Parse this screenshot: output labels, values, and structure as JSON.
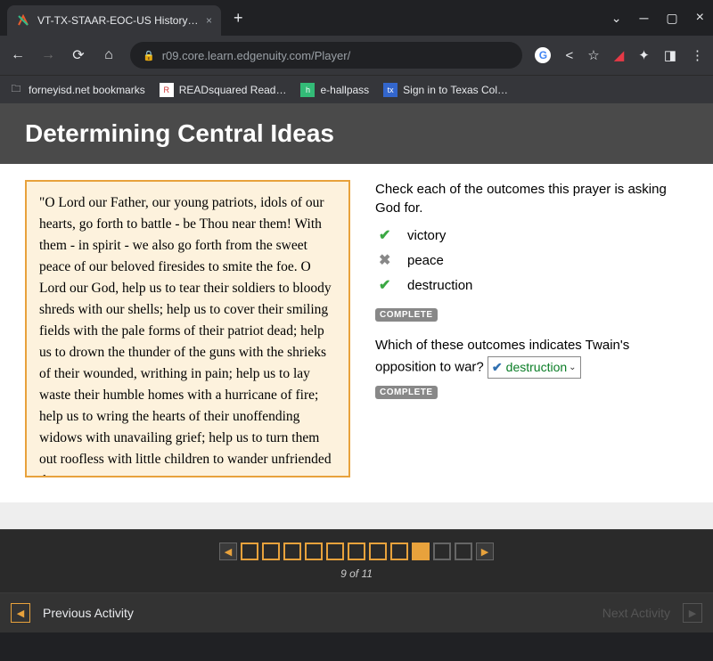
{
  "browser": {
    "tab_title": "VT-TX-STAAR-EOC-US History - I…",
    "url": "r09.core.learn.edgenuity.com/Player/",
    "bookmarks": [
      {
        "label": "forneyisd.net bookmarks",
        "icon": "folder"
      },
      {
        "label": "READsquared Read…",
        "icon": "rs"
      },
      {
        "label": "e-hallpass",
        "icon": "eh"
      },
      {
        "label": "Sign in to Texas Col…",
        "icon": "tx"
      }
    ]
  },
  "page": {
    "title": "Determining Central Ideas",
    "passage": "\"O Lord our Father, our young patriots, idols of our hearts, go forth to battle - be Thou near them! With them - in spirit - we also go forth from the sweet peace of our beloved firesides to smite the foe. O Lord our God, help us to tear their soldiers to bloody shreds with our shells; help us to cover their smiling fields with the pale forms of their patriot dead; help us to drown the thunder of the guns with the shrieks of their wounded, writhing in pain; help us to lay waste their humble homes with a hurricane of fire; help us to wring the hearts of their unoffending widows with unavailing grief; help us to turn them out roofless with little children to wander unfriended the",
    "question1": "Check each of the outcomes this prayer is asking God for.",
    "options": [
      {
        "label": "victory",
        "state": "green"
      },
      {
        "label": "peace",
        "state": "gray"
      },
      {
        "label": "destruction",
        "state": "green"
      }
    ],
    "complete_label": "COMPLETE",
    "question2_pre": "Which of these outcomes indicates Twain's opposition to war?",
    "dropdown_value": "destruction"
  },
  "progress": {
    "total": 11,
    "current": 9,
    "label": "9 of 11"
  },
  "activity": {
    "prev_label": "Previous Activity",
    "next_label": "Next Activity"
  }
}
